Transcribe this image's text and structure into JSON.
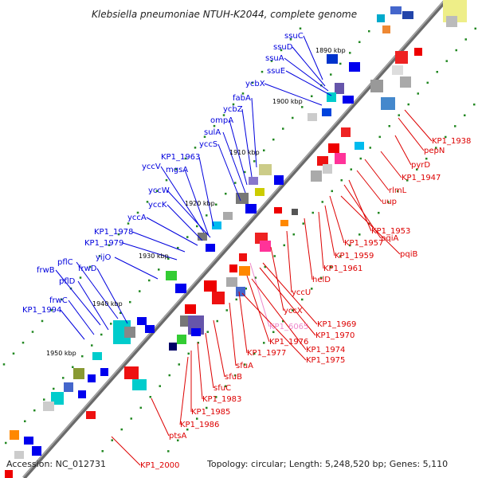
{
  "title": "Klebsiella pneumoniae NTUH-K2044, complete genome",
  "footer": {
    "accession": "Accession: NC_012731",
    "info": "Topology: circular; Length: 5,248,520 bp; Genes: 5,110"
  },
  "colors": {
    "forward": "#0000dd",
    "reverse": "#dd0000",
    "highlight": "#ee88cc",
    "backbone": "#777777",
    "tick_dot": "#228822"
  },
  "ticks": [
    "1890 kbp",
    "1900 kbp",
    "1910 kbp",
    "1920 kbp",
    "1930 kbp",
    "1940 kbp",
    "1950 kbp"
  ],
  "forward_genes": [
    "ssuC",
    "ssuD",
    "ssuA",
    "ssuE",
    "ycbX",
    "fabA",
    "ycbZ",
    "ompA",
    "sulA",
    "yccS",
    "KP1_1963",
    "yccV",
    "mgsA",
    "yccW",
    "yccK",
    "yccA",
    "KP1_1978",
    "KP1_1979",
    "yijO",
    "pflC",
    "frwD",
    "frwB",
    "pflD",
    "frwC",
    "KP1_1994"
  ],
  "reverse_genes": [
    "KP1_1938",
    "pepN",
    "pyrD",
    "KP1_1947",
    "rlmL",
    "uup",
    "KP1_1953",
    "pqiA",
    "KP1_1957",
    "pqiB",
    "KP1_1959",
    "KP1_1961",
    "helD",
    "yccU",
    "yccX",
    "KP1_6065",
    "KP1_1969",
    "KP1_1970",
    "KP1_1976",
    "KP1_1974",
    "KP1_1977",
    "KP1_1975",
    "sfuA",
    "sfuB",
    "sfuC",
    "KP1_1983",
    "KP1_1985",
    "KP1_1986",
    "ptsA",
    "KP1_2000"
  ]
}
